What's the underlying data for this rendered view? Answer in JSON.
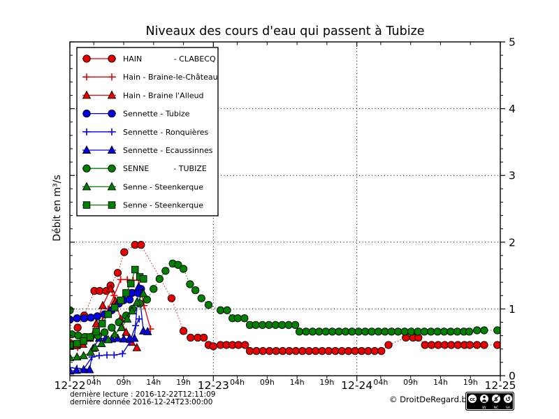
{
  "footer": {
    "last_reading": "dernière lecture : 2016-12-22T12:11:09",
    "last_data": "dernière donnée  2016-12-24T23:00:00",
    "copyright": "© DroitDeRegard.be"
  },
  "license_badge": {
    "cc_text": "cc",
    "nc_symbol": "$",
    "sa_symbol": "↺",
    "captions": [
      "BY",
      "NC",
      "SA"
    ]
  },
  "chart_data": {
    "type": "line",
    "title": "Niveaux des cours d'eau qui passent à Tubize",
    "xlabel": "",
    "ylabel": "Débit en m³/s",
    "x_start": "2016-12-22T00:00",
    "xlim_hours": [
      0,
      72
    ],
    "ylim": [
      0,
      5
    ],
    "y_ticks": [
      0,
      1,
      2,
      3,
      4,
      5
    ],
    "grid": {
      "horizontal_at": [
        1,
        2,
        3,
        4
      ],
      "vertical_at_hours": [
        24,
        48
      ]
    },
    "x_day_ticks": [
      {
        "hour": 0,
        "label": "12-22"
      },
      {
        "hour": 24,
        "label": "12-23"
      },
      {
        "hour": 48,
        "label": "12-24"
      },
      {
        "hour": 72,
        "label": "12-25"
      }
    ],
    "x_hour_ticks": [
      {
        "hour": 4,
        "label": "04h"
      },
      {
        "hour": 9,
        "label": "09h"
      },
      {
        "hour": 14,
        "label": "14h"
      },
      {
        "hour": 19,
        "label": "19h"
      },
      {
        "hour": 28,
        "label": "04h"
      },
      {
        "hour": 33,
        "label": "09h"
      },
      {
        "hour": 38,
        "label": "14h"
      },
      {
        "hour": 43,
        "label": "19h"
      },
      {
        "hour": 52,
        "label": "04h"
      },
      {
        "hour": 57,
        "label": "09h"
      },
      {
        "hour": 62,
        "label": "14h"
      },
      {
        "hour": 67,
        "label": "19h"
      }
    ],
    "series": [
      {
        "name": "HAIN - CLABECQ",
        "legend_label": "HAIN             - CLABECQ",
        "color": "#e60000",
        "marker": "circle",
        "line": "dotted",
        "points": [
          [
            0,
            0.49
          ],
          [
            1.3,
            0.72
          ],
          [
            2.4,
            0.9
          ],
          [
            4.1,
            1.27
          ],
          [
            5,
            1.27
          ],
          [
            6.1,
            1.27
          ],
          [
            6.8,
            1.35
          ],
          [
            8,
            1.54
          ],
          [
            9.1,
            1.85
          ],
          [
            10.9,
            1.96
          ],
          [
            11.9,
            1.96
          ],
          [
            17,
            1.16
          ],
          [
            19,
            0.67
          ],
          [
            20.2,
            0.57
          ],
          [
            21.4,
            0.57
          ],
          [
            22.4,
            0.57
          ],
          [
            23.2,
            0.46
          ],
          [
            24,
            0.44
          ],
          [
            25.2,
            0.46
          ],
          [
            26.2,
            0.46
          ],
          [
            27.2,
            0.46
          ],
          [
            28.2,
            0.46
          ],
          [
            29.3,
            0.46
          ],
          [
            30.1,
            0.37
          ],
          [
            31.2,
            0.37
          ],
          [
            32.3,
            0.37
          ],
          [
            33.4,
            0.37
          ],
          [
            34.5,
            0.37
          ],
          [
            35.6,
            0.37
          ],
          [
            36.7,
            0.37
          ],
          [
            37.8,
            0.37
          ],
          [
            38.9,
            0.37
          ],
          [
            40,
            0.37
          ],
          [
            41.1,
            0.37
          ],
          [
            42.2,
            0.37
          ],
          [
            43.3,
            0.37
          ],
          [
            44.4,
            0.37
          ],
          [
            45.5,
            0.37
          ],
          [
            46.6,
            0.37
          ],
          [
            47.7,
            0.37
          ],
          [
            48.8,
            0.37
          ],
          [
            49.9,
            0.37
          ],
          [
            51,
            0.37
          ],
          [
            52.1,
            0.37
          ],
          [
            53.3,
            0.46
          ],
          [
            56.2,
            0.57
          ],
          [
            57.4,
            0.57
          ],
          [
            58.3,
            0.57
          ],
          [
            59.4,
            0.46
          ],
          [
            60.5,
            0.46
          ],
          [
            61.6,
            0.46
          ],
          [
            62.7,
            0.46
          ],
          [
            63.8,
            0.46
          ],
          [
            64.9,
            0.46
          ],
          [
            66,
            0.46
          ],
          [
            66.9,
            0.46
          ],
          [
            68.1,
            0.46
          ],
          [
            69.3,
            0.46
          ],
          [
            71.5,
            0.46
          ]
        ]
      },
      {
        "name": "Hain - Braine-le-Château",
        "legend_label": "Hain - Braine-le-Château",
        "color": "#e60000",
        "marker": "plus",
        "line": "solid",
        "points": [
          [
            0,
            0.4
          ],
          [
            1.3,
            0.42
          ],
          [
            2.3,
            0.48
          ],
          [
            3.4,
            0.56
          ],
          [
            4.4,
            0.68
          ],
          [
            5.4,
            0.82
          ],
          [
            6.4,
            1.0
          ],
          [
            7.4,
            1.2
          ],
          [
            8.5,
            1.44
          ],
          [
            9.6,
            1.44
          ],
          [
            10.6,
            1.43
          ],
          [
            11.5,
            1.43
          ],
          [
            12.4,
            1.05
          ],
          [
            13.5,
            0.7
          ]
        ]
      },
      {
        "name": "Hain - Braine l'Alleud",
        "legend_label": "Hain - Braine l'Alleud",
        "color": "#e60000",
        "marker": "triangle",
        "line": "solid",
        "points": [
          [
            0,
            0.44
          ],
          [
            1.1,
            0.45
          ],
          [
            2.2,
            0.47
          ],
          [
            3.3,
            0.56
          ],
          [
            4.4,
            0.78
          ],
          [
            5.5,
            1.05
          ],
          [
            6.8,
            1.3
          ],
          [
            7.6,
            1.12
          ],
          [
            8.5,
            0.85
          ],
          [
            9.4,
            0.65
          ],
          [
            10.3,
            0.5
          ],
          [
            11.2,
            0.42
          ]
        ]
      },
      {
        "name": "Sennette - Tubize",
        "legend_label": "Sennette - Tubize",
        "color": "#0000e0",
        "marker": "circle",
        "line": "solid",
        "points": [
          [
            0,
            0.84
          ],
          [
            1.2,
            0.86
          ],
          [
            2.4,
            0.86
          ],
          [
            3.5,
            0.87
          ],
          [
            4.6,
            0.89
          ],
          [
            5.8,
            0.92
          ],
          [
            7,
            0.98
          ],
          [
            8.2,
            1.08
          ],
          [
            9,
            1.13
          ],
          [
            10,
            1.14
          ],
          [
            10.4,
            1.24
          ],
          [
            11.4,
            1.24
          ],
          [
            11.9,
            1.3
          ]
        ]
      },
      {
        "name": "Sennette - Ronquières",
        "legend_label": "Sennette - Ronquières",
        "color": "#0000e0",
        "marker": "plus",
        "line": "solid",
        "points": [
          [
            0,
            0.12
          ],
          [
            1.2,
            0.11
          ],
          [
            2.3,
            0.1
          ],
          [
            3.7,
            0.28
          ],
          [
            4.9,
            0.3
          ],
          [
            6.2,
            0.31
          ],
          [
            7.4,
            0.31
          ],
          [
            8.8,
            0.33
          ],
          [
            10,
            0.5
          ],
          [
            11,
            0.75
          ],
          [
            11.6,
            0.85
          ]
        ]
      },
      {
        "name": "Sennette - Ecaussinnes",
        "legend_label": "Sennette - Ecaussinnes",
        "color": "#0000e0",
        "marker": "triangle",
        "line": "solid",
        "points": [
          [
            0,
            0.07
          ],
          [
            1.1,
            0.08
          ],
          [
            2.3,
            0.09
          ],
          [
            3.3,
            0.09
          ],
          [
            3.9,
            0.41
          ],
          [
            4.9,
            0.56
          ],
          [
            6,
            0.56
          ],
          [
            7,
            0.55
          ],
          [
            8,
            0.56
          ],
          [
            9,
            0.55
          ],
          [
            10,
            0.56
          ],
          [
            10.8,
            0.56
          ],
          [
            11.5,
            1.33
          ],
          [
            12.3,
            0.67
          ],
          [
            13,
            0.66
          ]
        ]
      },
      {
        "name": "SENNE - TUBIZE",
        "legend_label": "SENNE          - TUBIZE",
        "color": "#008000",
        "marker": "circle",
        "line": "dotted",
        "points": [
          [
            0,
            0.98
          ],
          [
            0.3,
            0.62
          ],
          [
            1.4,
            0.6
          ],
          [
            2.5,
            0.58
          ],
          [
            3.5,
            0.58
          ],
          [
            4.7,
            0.6
          ],
          [
            5.8,
            0.65
          ],
          [
            7,
            0.72
          ],
          [
            8.2,
            0.8
          ],
          [
            9.4,
            0.9
          ],
          [
            10.5,
            1.0
          ],
          [
            11.7,
            1.08
          ],
          [
            12.9,
            1.14
          ],
          [
            14,
            1.3
          ],
          [
            15,
            1.45
          ],
          [
            16,
            1.57
          ],
          [
            17.2,
            1.68
          ],
          [
            18.1,
            1.66
          ],
          [
            19,
            1.6
          ],
          [
            20.1,
            1.37
          ],
          [
            21,
            1.28
          ],
          [
            22,
            1.16
          ],
          [
            23.2,
            1.06
          ],
          [
            25.2,
            0.98
          ],
          [
            26.3,
            0.98
          ],
          [
            27.2,
            0.86
          ],
          [
            28.1,
            0.86
          ],
          [
            29.2,
            0.86
          ],
          [
            30.1,
            0.76
          ],
          [
            31.1,
            0.76
          ],
          [
            32.2,
            0.76
          ],
          [
            33.3,
            0.76
          ],
          [
            34.4,
            0.76
          ],
          [
            35.5,
            0.76
          ],
          [
            36.6,
            0.76
          ],
          [
            37.7,
            0.76
          ],
          [
            38.4,
            0.66
          ],
          [
            39.5,
            0.66
          ],
          [
            40.6,
            0.66
          ],
          [
            41.7,
            0.66
          ],
          [
            42.8,
            0.66
          ],
          [
            43.9,
            0.66
          ],
          [
            45,
            0.66
          ],
          [
            46.1,
            0.66
          ],
          [
            47.2,
            0.66
          ],
          [
            48.3,
            0.66
          ],
          [
            49.4,
            0.66
          ],
          [
            50.5,
            0.66
          ],
          [
            51.6,
            0.66
          ],
          [
            52.7,
            0.66
          ],
          [
            53.8,
            0.66
          ],
          [
            54.9,
            0.66
          ],
          [
            56,
            0.66
          ],
          [
            57.1,
            0.66
          ],
          [
            58.2,
            0.66
          ],
          [
            59.3,
            0.66
          ],
          [
            60.4,
            0.66
          ],
          [
            61.5,
            0.66
          ],
          [
            62.6,
            0.66
          ],
          [
            63.7,
            0.66
          ],
          [
            64.8,
            0.66
          ],
          [
            65.9,
            0.66
          ],
          [
            66.8,
            0.66
          ],
          [
            68.1,
            0.68
          ],
          [
            69.3,
            0.68
          ],
          [
            71.5,
            0.68
          ]
        ]
      },
      {
        "name": "Senne - Steenkerque",
        "legend_label": "Senne - Steenkerque",
        "color": "#008000",
        "marker": "triangle",
        "line": "solid",
        "points": [
          [
            0,
            0.27
          ],
          [
            1.2,
            0.28
          ],
          [
            2.3,
            0.3
          ],
          [
            3.5,
            0.35
          ],
          [
            4.2,
            0.42
          ],
          [
            5.3,
            0.48
          ],
          [
            6.4,
            0.54
          ],
          [
            7.5,
            0.62
          ],
          [
            8.6,
            0.72
          ],
          [
            9.6,
            0.85
          ],
          [
            10.4,
            0.97
          ],
          [
            11.2,
            1.1
          ],
          [
            12.3,
            1.23
          ]
        ]
      },
      {
        "name": "Senne - Steenkerque",
        "legend_label": "Senne - Steenkerque",
        "color": "#008000",
        "marker": "square",
        "line": "solid",
        "points": [
          [
            0,
            0.46
          ],
          [
            1.2,
            0.48
          ],
          [
            2.3,
            0.52
          ],
          [
            3.4,
            0.58
          ],
          [
            4.4,
            0.66
          ],
          [
            5.4,
            0.78
          ],
          [
            6.4,
            0.92
          ],
          [
            7.5,
            1.02
          ],
          [
            8.5,
            1.13
          ],
          [
            9.4,
            1.24
          ],
          [
            10.2,
            1.38
          ],
          [
            10.9,
            1.59
          ],
          [
            11.7,
            1.48
          ],
          [
            12.3,
            1.45
          ]
        ]
      }
    ]
  }
}
